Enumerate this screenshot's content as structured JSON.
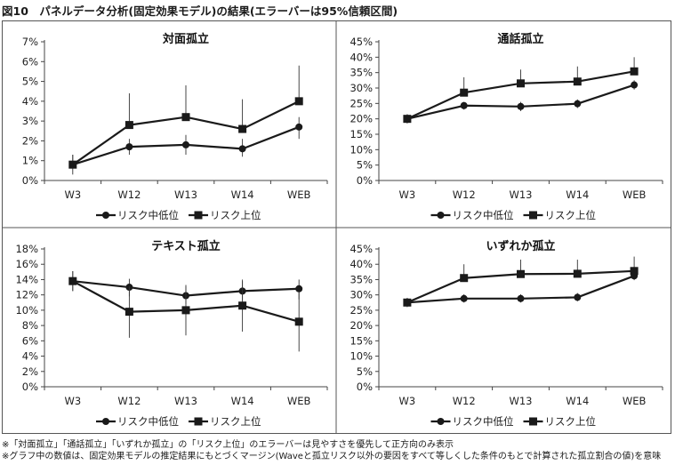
{
  "figure": {
    "title": "図10　パネルデータ分析(固定効果モデル)の結果(エラーバーは95%信頼区間)",
    "notes": [
      "※「対面孤立」「通話孤立」「いずれか孤立」の「リスク上位」のエラーバーは見やすさを優先して正方向のみ表示",
      "※グラフ中の数値は、固定効果モデルの推定結果にもとづくマージン(Waveと孤立リスク以外の要因をすべて等しくした条件のもとで計算された孤立割合の値)を意味"
    ]
  },
  "chart_data": [
    {
      "type": "line",
      "title": "対面孤立",
      "categories": [
        "W3",
        "W12",
        "W13",
        "W14",
        "WEB"
      ],
      "ylim": [
        0,
        7
      ],
      "yticks": [
        0,
        1,
        2,
        3,
        4,
        5,
        6,
        7
      ],
      "ytick_labels": [
        "0%",
        "1%",
        "2%",
        "3%",
        "4%",
        "5%",
        "6%",
        "7%"
      ],
      "grid": false,
      "legend_position": "bottom",
      "series": [
        {
          "name": "リスク中低位",
          "marker": "circle",
          "values": [
            0.8,
            1.7,
            1.8,
            1.6,
            2.7
          ],
          "err_low": [
            0.3,
            1.3,
            1.3,
            1.2,
            2.1
          ],
          "err_high": [
            1.3,
            2.1,
            2.3,
            2.1,
            3.2
          ]
        },
        {
          "name": "リスク上位",
          "marker": "square",
          "values": [
            0.8,
            2.8,
            3.2,
            2.6,
            4.0
          ],
          "err_low": [
            0.8,
            2.8,
            3.2,
            2.6,
            4.0
          ],
          "err_high": [
            1.3,
            4.4,
            4.8,
            4.1,
            5.8
          ]
        }
      ]
    },
    {
      "type": "line",
      "title": "通話孤立",
      "categories": [
        "W3",
        "W12",
        "W13",
        "W14",
        "WEB"
      ],
      "ylim": [
        0,
        45
      ],
      "yticks": [
        0,
        5,
        10,
        15,
        20,
        25,
        30,
        35,
        40,
        45
      ],
      "ytick_labels": [
        "0%",
        "5%",
        "10%",
        "15%",
        "20%",
        "25%",
        "30%",
        "35%",
        "40%",
        "45%"
      ],
      "grid": false,
      "legend_position": "bottom",
      "series": [
        {
          "name": "リスク中低位",
          "marker": "circle",
          "values": [
            20.0,
            24.3,
            24.0,
            24.9,
            31.0
          ],
          "err_low": [
            18.5,
            23.0,
            22.5,
            23.5,
            29.5
          ],
          "err_high": [
            21.5,
            25.5,
            25.5,
            26.3,
            32.5
          ]
        },
        {
          "name": "リスク上位",
          "marker": "square",
          "values": [
            20.0,
            28.5,
            31.5,
            32.1,
            35.4
          ],
          "err_low": [
            20.0,
            28.5,
            31.5,
            32.1,
            35.4
          ],
          "err_high": [
            21.5,
            33.5,
            36.0,
            37.0,
            40.0
          ]
        }
      ]
    },
    {
      "type": "line",
      "title": "テキスト孤立",
      "categories": [
        "W3",
        "W12",
        "W13",
        "W14",
        "WEB"
      ],
      "ylim": [
        0,
        18
      ],
      "yticks": [
        0,
        2,
        4,
        6,
        8,
        10,
        12,
        14,
        16,
        18
      ],
      "ytick_labels": [
        "0%",
        "2%",
        "4%",
        "6%",
        "8%",
        "10%",
        "12%",
        "14%",
        "16%",
        "18%"
      ],
      "grid": false,
      "legend_position": "bottom",
      "series": [
        {
          "name": "リスク中低位",
          "marker": "circle",
          "values": [
            13.8,
            13.0,
            11.9,
            12.5,
            12.8
          ],
          "err_low": [
            12.5,
            11.8,
            10.8,
            11.3,
            11.4
          ],
          "err_high": [
            15.1,
            14.1,
            13.1,
            13.8,
            14.0
          ]
        },
        {
          "name": "リスク上位",
          "marker": "square",
          "values": [
            13.8,
            9.8,
            10.0,
            10.6,
            8.5
          ],
          "err_low": [
            12.5,
            6.4,
            6.7,
            7.2,
            4.6
          ],
          "err_high": [
            15.1,
            13.1,
            13.3,
            14.0,
            12.3
          ]
        }
      ]
    },
    {
      "type": "line",
      "title": "いずれか孤立",
      "categories": [
        "W3",
        "W12",
        "W13",
        "W14",
        "WEB"
      ],
      "ylim": [
        0,
        45
      ],
      "yticks": [
        0,
        5,
        10,
        15,
        20,
        25,
        30,
        35,
        40,
        45
      ],
      "ytick_labels": [
        "0%",
        "5%",
        "10%",
        "15%",
        "20%",
        "25%",
        "30%",
        "35%",
        "40%",
        "45%"
      ],
      "grid": false,
      "legend_position": "bottom",
      "series": [
        {
          "name": "リスク中低位",
          "marker": "circle",
          "values": [
            27.5,
            28.8,
            28.8,
            29.2,
            36.2
          ],
          "err_low": [
            26.0,
            27.5,
            27.5,
            27.9,
            34.8
          ],
          "err_high": [
            29.0,
            30.2,
            30.2,
            30.6,
            37.7
          ]
        },
        {
          "name": "リスク上位",
          "marker": "square",
          "values": [
            27.5,
            35.5,
            36.8,
            36.9,
            37.8
          ],
          "err_low": [
            27.5,
            35.5,
            36.8,
            36.9,
            37.8
          ],
          "err_high": [
            29.0,
            40.0,
            41.5,
            41.5,
            42.5
          ]
        }
      ]
    }
  ]
}
